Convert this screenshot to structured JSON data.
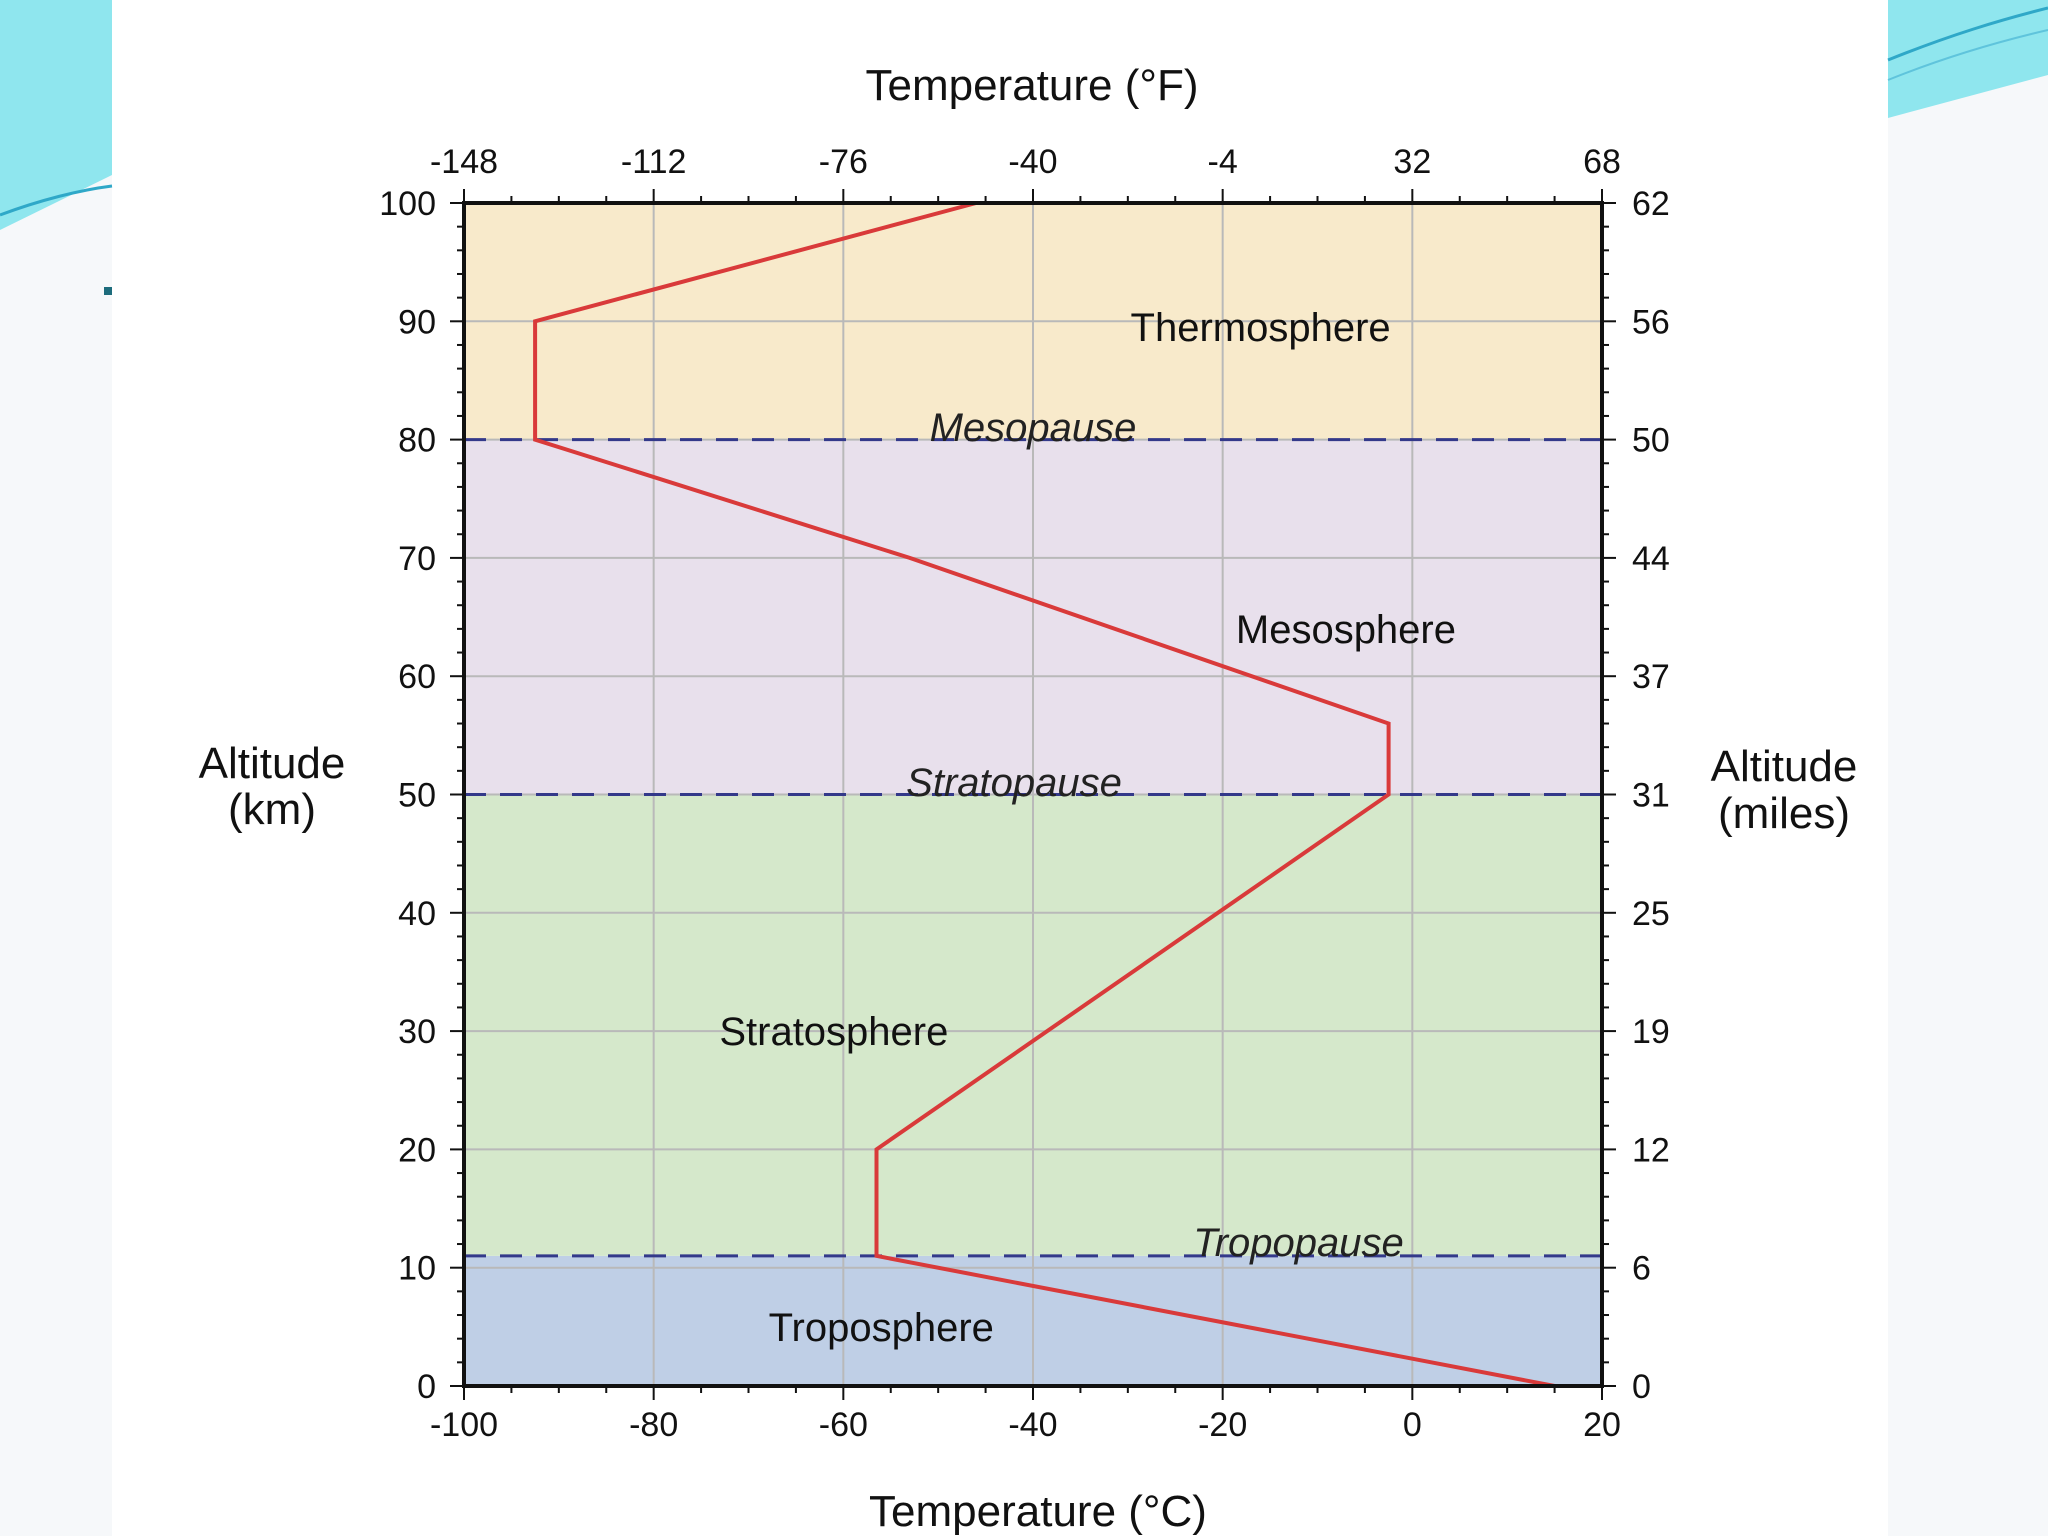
{
  "slide": {
    "colors": {
      "frame": "#f6f8fa",
      "accent_light": "#8fe6ee",
      "accent_dark": "#2fa8c8",
      "bullet": "#1d6c7c"
    }
  },
  "chart_data": {
    "type": "line",
    "x_axis_bottom": {
      "label": "Temperature (°C)",
      "range": [
        -100,
        20
      ],
      "ticks": [
        -100,
        -80,
        -60,
        -40,
        -20,
        0,
        20
      ],
      "tick_labels": [
        "-100",
        "-80",
        "-60",
        "-40",
        "-20",
        "0",
        "20"
      ]
    },
    "x_axis_top": {
      "label": "Temperature (°F)",
      "ticks_celsius": [
        -100,
        -80,
        -60,
        -40,
        -20,
        0,
        20
      ],
      "tick_labels": [
        "-148",
        "-112",
        "-76",
        "-40",
        "-4",
        "32",
        "68"
      ]
    },
    "y_axis_left": {
      "label_line1": "Altitude",
      "label_line2": "(km)",
      "range": [
        0,
        100
      ],
      "ticks": [
        0,
        10,
        20,
        30,
        40,
        50,
        60,
        70,
        80,
        90,
        100
      ],
      "tick_labels": [
        "0",
        "10",
        "20",
        "30",
        "40",
        "50",
        "60",
        "70",
        "80",
        "90",
        "100"
      ]
    },
    "y_axis_right": {
      "label_line1": "Altitude",
      "label_line2": "(miles)",
      "ticks_km": [
        0,
        10,
        20,
        30,
        40,
        50,
        60,
        70,
        80,
        90,
        100
      ],
      "tick_labels": [
        "0",
        "6",
        "12",
        "19",
        "25",
        "31",
        "37",
        "44",
        "50",
        "56",
        "62"
      ]
    },
    "grid": true,
    "layers": [
      {
        "name": "Troposphere",
        "from_km": 0,
        "to_km": 11,
        "color": "#bfcfe6",
        "label_at": [
          -56,
          5
        ]
      },
      {
        "name": "Stratosphere",
        "from_km": 11,
        "to_km": 50,
        "color": "#d5e8cb",
        "label_at": [
          -61,
          30
        ]
      },
      {
        "name": "Mesosphere",
        "from_km": 50,
        "to_km": 80,
        "color": "#e8e0ec",
        "label_at": [
          -7,
          64
        ]
      },
      {
        "name": "Thermosphere",
        "from_km": 80,
        "to_km": 100,
        "color": "#f8eacb",
        "label_at": [
          -16,
          89.5
        ]
      }
    ],
    "boundaries": [
      {
        "name": "Tropopause",
        "altitude_km": 11,
        "label_at": [
          -12,
          11.5
        ]
      },
      {
        "name": "Stratopause",
        "altitude_km": 50,
        "label_at": [
          -42,
          50.4
        ]
      },
      {
        "name": "Mesopause",
        "altitude_km": 80,
        "label_at": [
          -40,
          80.4
        ]
      }
    ],
    "series": [
      {
        "color": "#d93a3a",
        "points": [
          {
            "temp_c": 15,
            "alt_km": 0
          },
          {
            "temp_c": -56.5,
            "alt_km": 11
          },
          {
            "temp_c": -56.5,
            "alt_km": 20
          },
          {
            "temp_c": -2.5,
            "alt_km": 50
          },
          {
            "temp_c": -2.5,
            "alt_km": 56
          },
          {
            "temp_c": -53,
            "alt_km": 70
          },
          {
            "temp_c": -92.5,
            "alt_km": 80
          },
          {
            "temp_c": -92.5,
            "alt_km": 90
          },
          {
            "temp_c": -46,
            "alt_km": 100
          }
        ]
      }
    ]
  }
}
